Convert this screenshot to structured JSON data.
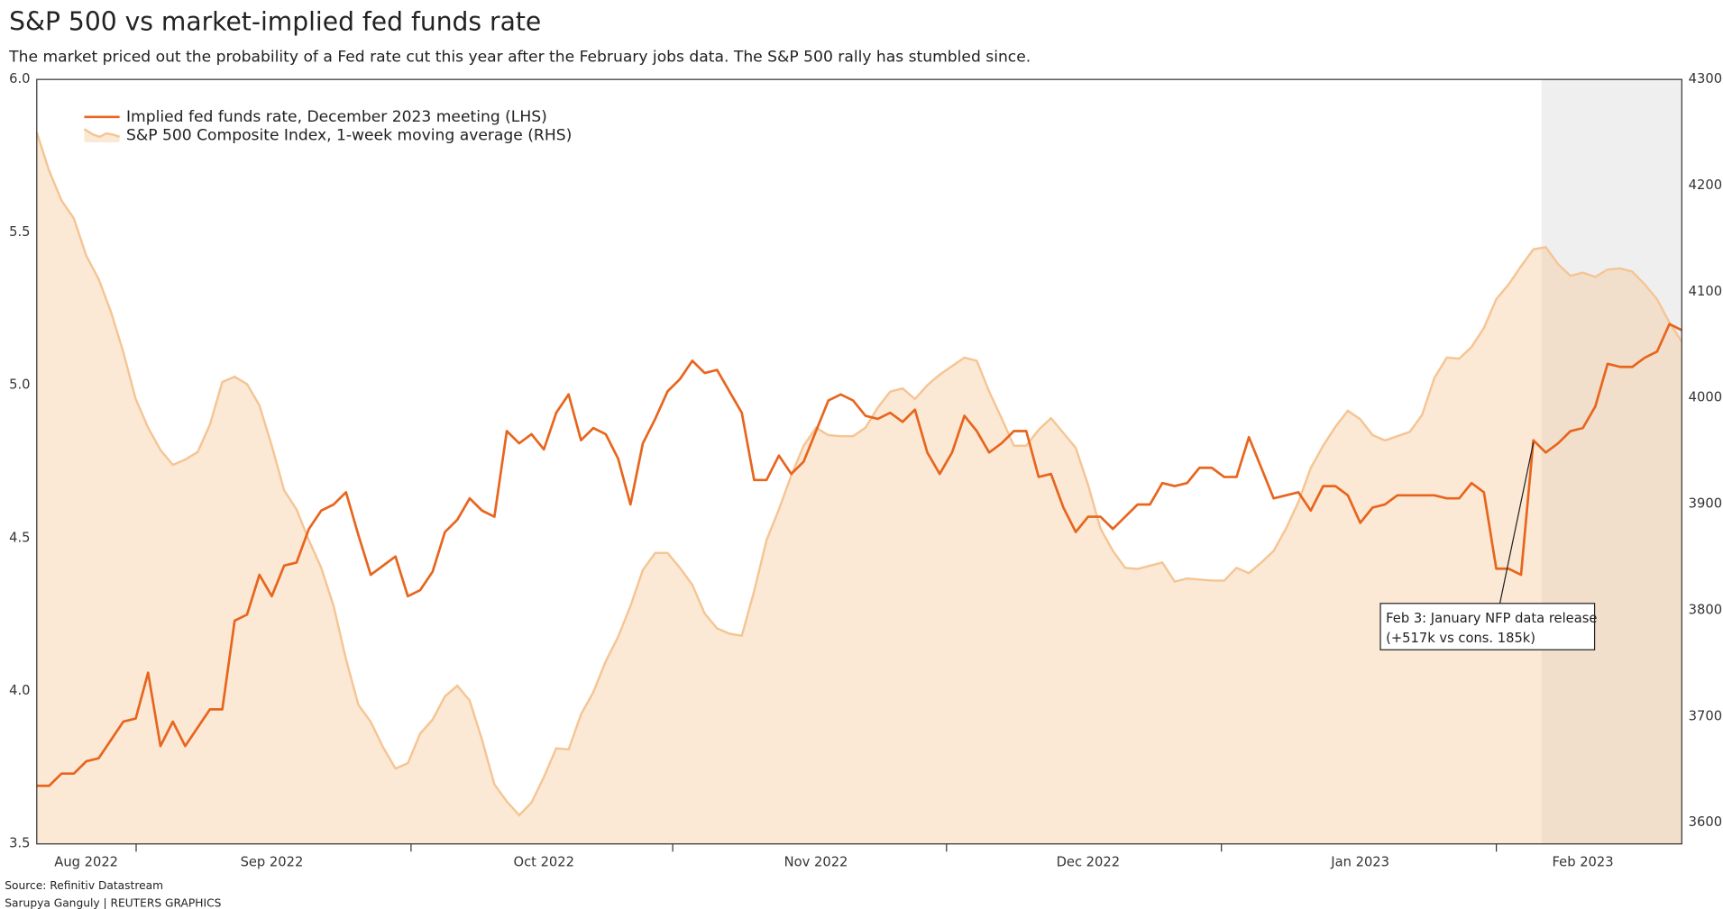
{
  "chart_data": {
    "type": "line",
    "title": "S&P 500 vs market-implied fed funds rate",
    "subtitle": "The market priced out the probability of a Fed rate cut this year after the February jobs data. The S&P 500 rally has stumbled since.",
    "source": "Source: Refinitiv Datastream",
    "credit": "Sarupya Ganguly | REUTERS GRAPHICS",
    "categories": [
      null,
      null,
      null,
      null,
      "Aug 2022",
      null,
      null,
      null,
      null,
      null,
      null,
      null,
      null,
      null,
      null,
      null,
      null,
      null,
      null,
      "Sep 2022",
      null,
      null,
      null,
      null,
      null,
      null,
      null,
      null,
      null,
      null,
      null,
      null,
      null,
      null,
      null,
      null,
      null,
      null,
      null,
      null,
      null,
      "Oct 2022",
      null,
      null,
      null,
      null,
      null,
      null,
      null,
      null,
      null,
      null,
      null,
      null,
      null,
      null,
      null,
      null,
      null,
      null,
      null,
      null,
      null,
      "Nov 2022",
      null,
      null,
      null,
      null,
      null,
      null,
      null,
      null,
      null,
      null,
      null,
      null,
      null,
      null,
      null,
      null,
      null,
      null,
      null,
      null,
      null,
      "Dec 2022",
      null,
      null,
      null,
      null,
      null,
      null,
      null,
      null,
      null,
      null,
      null,
      null,
      null,
      null,
      null,
      null,
      null,
      null,
      null,
      null,
      null,
      "Jan 2023",
      null,
      null,
      null,
      null,
      null,
      null,
      null,
      null,
      null,
      null,
      null,
      null,
      null,
      null,
      null,
      null,
      null,
      "Feb 2023",
      null,
      null,
      null,
      null,
      null,
      null,
      null,
      null
    ],
    "series": [
      {
        "name": "Implied fed funds rate, December 2023 meeting (LHS)",
        "color": "#e8651d",
        "type": "line",
        "values": [
          3.69,
          3.69,
          3.73,
          3.73,
          3.77,
          3.78,
          3.84,
          3.9,
          3.91,
          4.06,
          3.82,
          3.9,
          3.82,
          3.88,
          3.94,
          3.94,
          4.23,
          4.25,
          4.38,
          4.31,
          4.41,
          4.42,
          4.53,
          4.59,
          4.61,
          4.65,
          4.51,
          4.38,
          4.41,
          4.44,
          4.31,
          4.33,
          4.39,
          4.52,
          4.56,
          4.63,
          4.59,
          4.57,
          4.85,
          4.81,
          4.84,
          4.79,
          4.91,
          4.97,
          4.82,
          4.86,
          4.84,
          4.76,
          4.61,
          4.81,
          4.89,
          4.98,
          5.02,
          5.08,
          5.04,
          5.05,
          4.98,
          4.91,
          4.69,
          4.69,
          4.77,
          4.71,
          4.75,
          4.85,
          4.95,
          4.97,
          4.95,
          4.9,
          4.89,
          4.91,
          4.88,
          4.92,
          4.78,
          4.71,
          4.78,
          4.9,
          4.85,
          4.78,
          4.81,
          4.85,
          4.85,
          4.7,
          4.71,
          4.6,
          4.52,
          4.57,
          4.57,
          4.53,
          4.57,
          4.61,
          4.61,
          4.68,
          4.67,
          4.68,
          4.73,
          4.73,
          4.7,
          4.7,
          4.83,
          4.73,
          4.63,
          4.64,
          4.65,
          4.59,
          4.67,
          4.67,
          4.64,
          4.55,
          4.6,
          4.61,
          4.64,
          4.64,
          4.64,
          4.64,
          4.63,
          4.63,
          4.68,
          4.65,
          4.4,
          4.4,
          4.38,
          4.82,
          4.78,
          4.81,
          4.85,
          4.86,
          4.93,
          5.07,
          5.06,
          5.06,
          5.09,
          5.11,
          5.2,
          5.18
        ]
      },
      {
        "name": "S&P 500 Composite Index, 1-week moving average (RHS)",
        "color": "#f5c594",
        "type": "area",
        "axis": "y2",
        "values": [
          4250,
          4214,
          4186,
          4169,
          4134,
          4112,
          4081,
          4043,
          3999,
          3972,
          3951,
          3937,
          3942,
          3949,
          3975,
          4015,
          4020,
          4013,
          3993,
          3955,
          3913,
          3895,
          3866,
          3840,
          3804,
          3754,
          3711,
          3695,
          3671,
          3651,
          3656,
          3684,
          3697,
          3719,
          3729,
          3715,
          3678,
          3636,
          3620,
          3607,
          3619,
          3643,
          3670,
          3669,
          3702,
          3723,
          3752,
          3775,
          3804,
          3838,
          3854,
          3854,
          3840,
          3824,
          3797,
          3783,
          3778,
          3776,
          3818,
          3866,
          3895,
          3927,
          3955,
          3972,
          3965,
          3964,
          3964,
          3972,
          3991,
          4006,
          4009,
          3999,
          4012,
          4022,
          4030,
          4038,
          4035,
          4006,
          3981,
          3955,
          3955,
          3970,
          3981,
          3967,
          3953,
          3918,
          3877,
          3856,
          3840,
          3839,
          3842,
          3845,
          3827,
          3830,
          3829,
          3828,
          3828,
          3840,
          3835,
          3845,
          3856,
          3877,
          3902,
          3934,
          3955,
          3973,
          3988,
          3980,
          3965,
          3960,
          3964,
          3968,
          3984,
          4019,
          4038,
          4037,
          4048,
          4066,
          4093,
          4107,
          4124,
          4140,
          4142,
          4126,
          4115,
          4118,
          4114,
          4121,
          4122,
          4119,
          4107,
          4093,
          4071,
          4053
        ]
      }
    ],
    "ylim": [
      3.5,
      6.0
    ],
    "yticks": [
      3.5,
      {
        "value": 4,
        "label": "4.0"
      },
      4.5,
      {
        "value": 5,
        "label": "5.0"
      },
      5.5,
      {
        "value": 6,
        "label": "6.0"
      }
    ],
    "y2lim": [
      3580,
      4300
    ],
    "y2ticks": [
      3600,
      3700,
      3800,
      3900,
      4000,
      4100,
      4200,
      4300
    ],
    "grid": false,
    "annotation": [
      "Feb 3: January NFP data release",
      "(+517k vs cons. 185k)"
    ]
  }
}
